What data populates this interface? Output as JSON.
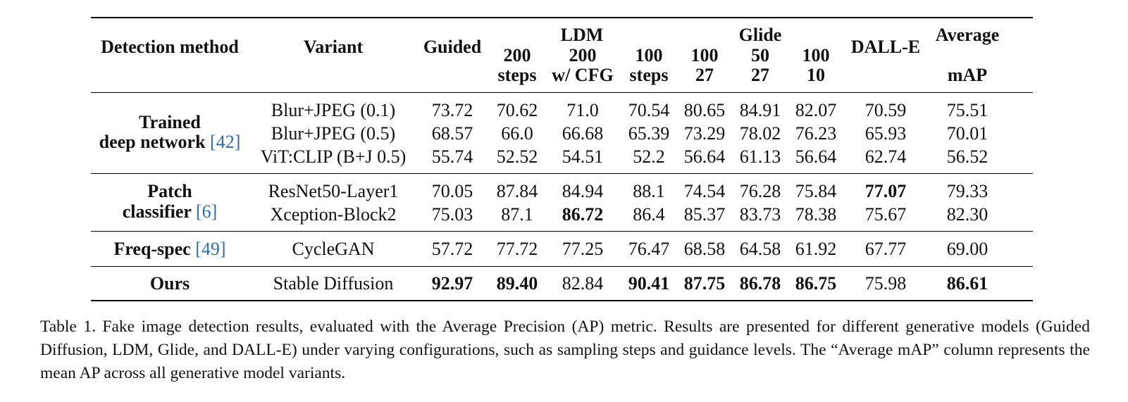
{
  "table": {
    "header": {
      "detection_method": "Detection method",
      "variant": "Variant",
      "guided": "Guided",
      "ldm_group": "LDM",
      "ldm_cols": [
        [
          "200",
          "steps"
        ],
        [
          "200",
          "w/ CFG"
        ],
        [
          "100",
          "steps"
        ]
      ],
      "glide_group": "Glide",
      "glide_cols": [
        [
          "100",
          "27"
        ],
        [
          "50",
          "27"
        ],
        [
          "100",
          "10"
        ]
      ],
      "dalle": "DALL-E",
      "average": [
        "Average",
        "mAP"
      ]
    },
    "groups": [
      {
        "method_lines": [
          "Trained",
          "deep network"
        ],
        "citation": "[42]",
        "rows": [
          {
            "variant": "Blur+JPEG (0.1)",
            "values": [
              "73.72",
              "70.62",
              "71.0",
              "70.54",
              "80.65",
              "84.91",
              "82.07",
              "70.59",
              "75.51"
            ],
            "bold": []
          },
          {
            "variant": "Blur+JPEG (0.5)",
            "values": [
              "68.57",
              "66.0",
              "66.68",
              "65.39",
              "73.29",
              "78.02",
              "76.23",
              "65.93",
              "70.01"
            ],
            "bold": []
          },
          {
            "variant": "ViT:CLIP (B+J 0.5)",
            "values": [
              "55.74",
              "52.52",
              "54.51",
              "52.2",
              "56.64",
              "61.13",
              "56.64",
              "62.74",
              "56.52"
            ],
            "bold": []
          }
        ]
      },
      {
        "method_lines": [
          "Patch",
          "classifier"
        ],
        "citation": "[6]",
        "rows": [
          {
            "variant": "ResNet50-Layer1",
            "values": [
              "70.05",
              "87.84",
              "84.94",
              "88.1",
              "74.54",
              "76.28",
              "75.84",
              "77.07",
              "79.33"
            ],
            "bold": [
              7
            ]
          },
          {
            "variant": "Xception-Block2",
            "values": [
              "75.03",
              "87.1",
              "86.72",
              "86.4",
              "85.37",
              "83.73",
              "78.38",
              "75.67",
              "82.30"
            ],
            "bold": [
              2
            ]
          }
        ]
      },
      {
        "method_lines": [
          "Freq-spec"
        ],
        "citation": "[49]",
        "rows": [
          {
            "variant": "CycleGAN",
            "values": [
              "57.72",
              "77.72",
              "77.25",
              "76.47",
              "68.58",
              "64.58",
              "61.92",
              "67.77",
              "69.00"
            ],
            "bold": []
          }
        ]
      },
      {
        "method_lines": [
          "Ours"
        ],
        "citation": "",
        "rows": [
          {
            "variant": "Stable Diffusion",
            "values": [
              "92.97",
              "89.40",
              "82.84",
              "90.41",
              "87.75",
              "86.78",
              "86.75",
              "75.98",
              "86.61"
            ],
            "bold": [
              0,
              1,
              3,
              4,
              5,
              6,
              8
            ]
          }
        ]
      }
    ]
  },
  "caption": "Table 1.  Fake image detection results, evaluated with the Average Precision (AP) metric.  Results are presented for different generative models (Guided Diffusion, LDM, Glide, and DALL-E) under varying configurations, such as sampling steps and guidance levels.  The “Average mAP” column represents the mean AP across all generative model variants."
}
